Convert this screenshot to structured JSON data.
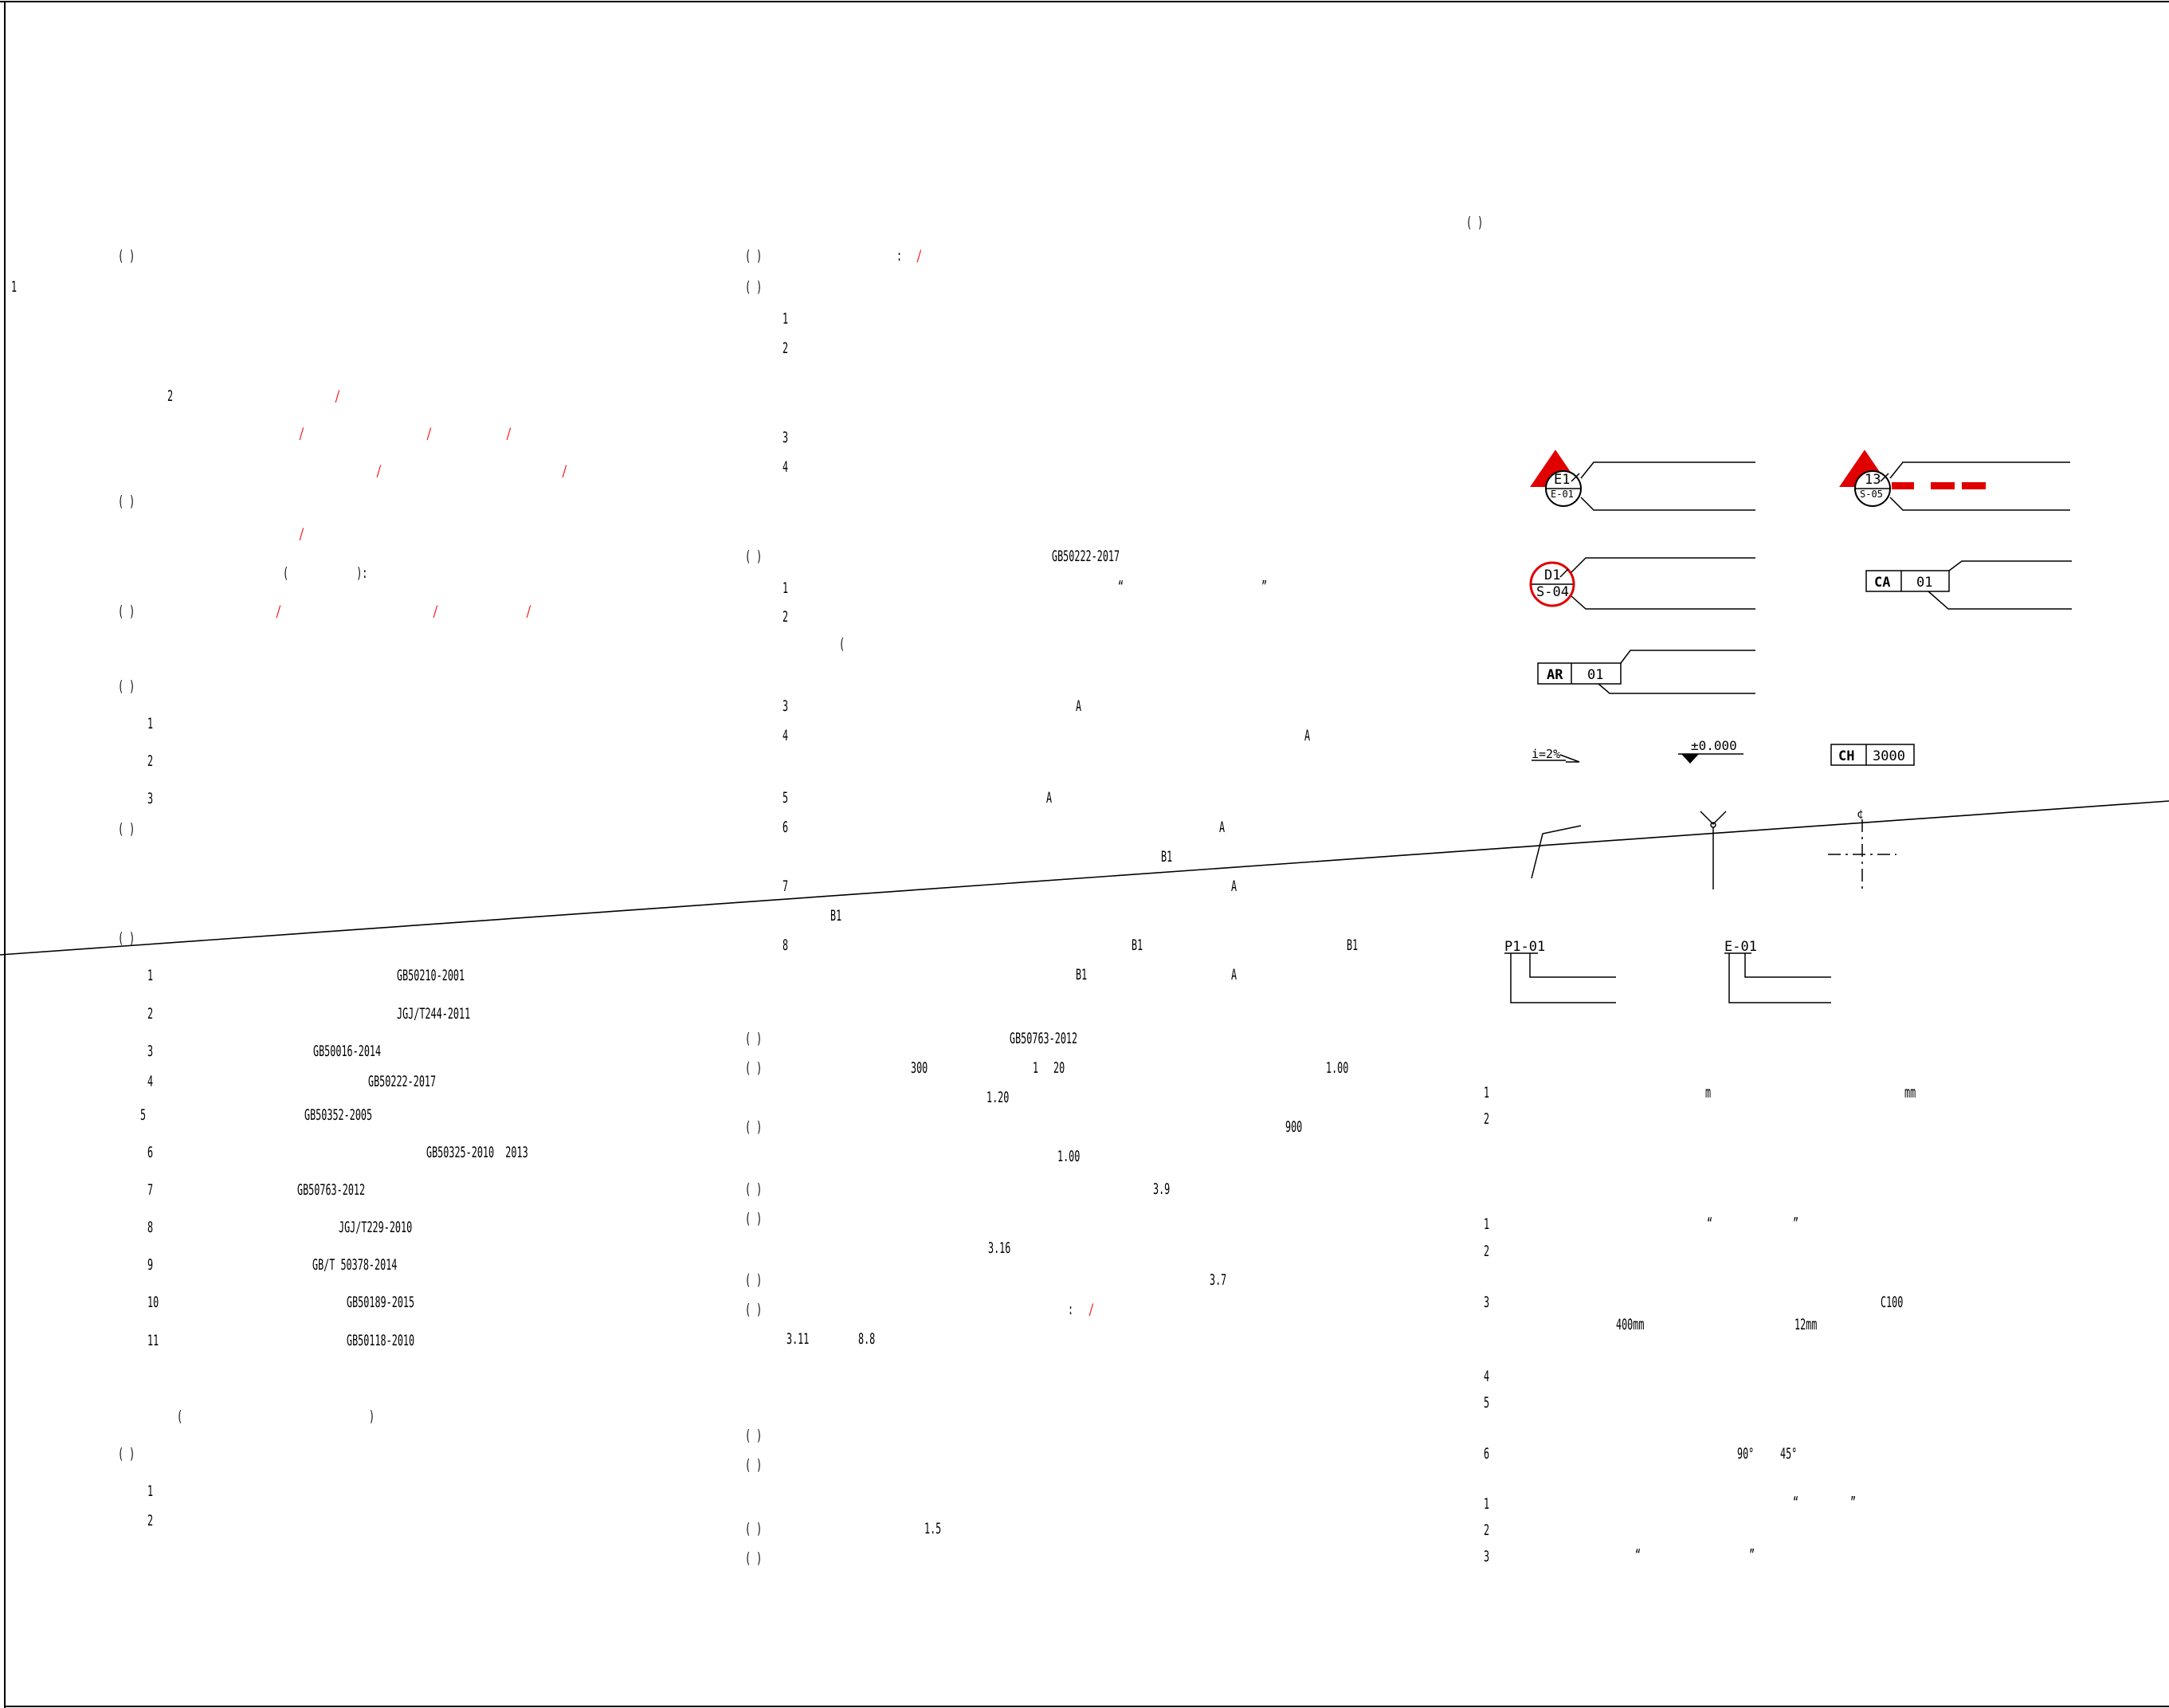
{
  "colors": {
    "ink": "#000000",
    "accent": "#ff0000",
    "paper": "#ffffff"
  },
  "col1": {
    "p1": "( )",
    "n1": "1",
    "n2": "2",
    "s1": "/",
    "s2": "/",
    "s3": "/",
    "s4": "/",
    "s5": "/",
    "s6": "/",
    "p2": "( )",
    "s7": "/",
    "paren": "(            ):",
    "p3": "( )",
    "s8": "/",
    "s9": "/",
    "s10": "/",
    "p4": "( )",
    "n4_1": "1",
    "n4_2": "2",
    "n4_3": "3",
    "p5": "( )",
    "p6": "( )",
    "standards": [
      {
        "num": "1",
        "code": "GB50210-2001"
      },
      {
        "num": "2",
        "code": "JGJ/T244-2011"
      },
      {
        "num": "3",
        "code": "GB50016-2014"
      },
      {
        "num": "4",
        "code": "GB50222-2017"
      },
      {
        "num": "5",
        "code": "GB50352-2005"
      },
      {
        "num": "6",
        "code": "GB50325-2010  2013"
      },
      {
        "num": "7",
        "code": "GB50763-2012"
      },
      {
        "num": "8",
        "code": "JGJ/T229-2010"
      },
      {
        "num": "9",
        "code": "GB/T 50378-2014"
      },
      {
        "num": "10",
        "code": "GB50189-2015"
      },
      {
        "num": "11",
        "code": "GB50118-2010"
      }
    ],
    "paren2_open": "(",
    "paren2_close": ")",
    "p7": "( )",
    "n7_1": "1",
    "n7_2": "2"
  },
  "col2": {
    "p1": "( )",
    "colon": ":",
    "s1": "/",
    "p2": "( )",
    "n2_1": "1",
    "n2_2": "2",
    "n2_3": "3",
    "n2_4": "4",
    "p3": "( )",
    "code3": "GB50222-2017",
    "n3_1": "1",
    "q1": "“",
    "q2": "”",
    "n3_2": "2",
    "paren3": "(",
    "n3_3": "3",
    "a3": "A",
    "n3_4": "4",
    "a4": "A",
    "n3_5": "5",
    "a5": "A",
    "n3_6": "6",
    "a6": "A",
    "b6": "B1",
    "n3_7": "7",
    "a7": "A",
    "b7": "B1",
    "n3_8": "8",
    "b8a": "B1",
    "b8b": "B1",
    "b8c": "B1",
    "a8": "A",
    "p4": "( )",
    "code4": "GB50763-2012",
    "p5": "( )",
    "v300": "300",
    "v1": "1",
    "v20": "20",
    "v100a": "1.00",
    "v120": "1.20",
    "p6": "( )",
    "v900": "900",
    "v100b": "1.00",
    "p7": "( )",
    "v39": "3.9",
    "p8": "( )",
    "v316": "3.16",
    "p9": "( )",
    "v37": "3.7",
    "p10": "( )",
    "colon2": ":",
    "s2": "/",
    "v311": "3.11",
    "v88": "8.8",
    "p11": "( )",
    "p12": "( )",
    "p13": "( )",
    "v15": "1.5",
    "p14": "( )"
  },
  "col3": {
    "p1": "( )",
    "legend": {
      "e1_top": "E1",
      "e1_bot": "E-01",
      "s13_top": "13",
      "s13_bot": "S-05",
      "d1_top": "D1",
      "d1_bot": "S-04",
      "ca_a": "CA",
      "ca_b": "01",
      "ar_a": "AR",
      "ar_b": "01",
      "slope": "i=2%",
      "level": "±0.000",
      "ch_a": "CH",
      "ch_b": "3000",
      "centerline": "¢",
      "p101": "P1-01",
      "e01": "E-01"
    },
    "n1": "1",
    "unit_m": "m",
    "unit_mm": "mm",
    "n2": "2",
    "g2_n1": "1",
    "q1": "“",
    "q2": "”",
    "g2_n2": "2",
    "g2_n3": "3",
    "c100": "C100",
    "mm400": "400mm",
    "mm12": "12mm",
    "g2_n4": "4",
    "g2_n5": "5",
    "g2_n6": "6",
    "deg90": "90°",
    "deg45": "45°",
    "g3_n1": "1",
    "q3": "“",
    "q4": "”",
    "g3_n2": "2",
    "g3_n3": "3",
    "q5": "“",
    "q6": "”"
  }
}
